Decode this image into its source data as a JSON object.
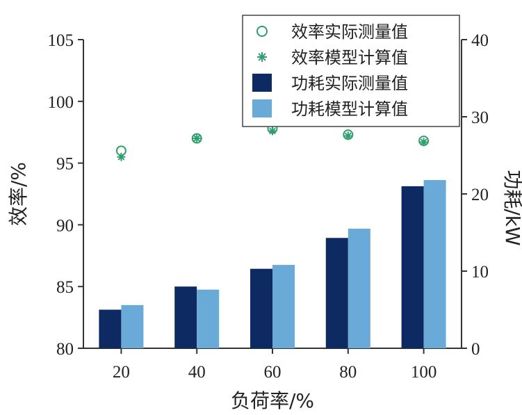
{
  "chart_data": {
    "type": "bar",
    "categories": [
      "20",
      "40",
      "60",
      "80",
      "100"
    ],
    "xlabel": "负荷率/%",
    "ylabel_left": "效率/%",
    "ylabel_right": "功耗/kW",
    "ylim_left": [
      80,
      105
    ],
    "yticks_left": [
      80,
      85,
      90,
      95,
      100,
      105
    ],
    "ylim_right": [
      0,
      40
    ],
    "yticks_right": [
      0,
      10,
      20,
      30,
      40
    ],
    "grid": false,
    "legend_position": "top-right",
    "series": [
      {
        "name": "效率实际测量值",
        "kind": "scatter",
        "marker": "circle",
        "axis": "left",
        "color": "#2e9e6e",
        "values": [
          96.0,
          97.0,
          97.8,
          97.3,
          96.8
        ]
      },
      {
        "name": "效率模型计算值",
        "kind": "scatter",
        "marker": "asterisk",
        "axis": "left",
        "color": "#2e9e6e",
        "values": [
          95.5,
          97.0,
          97.6,
          97.2,
          96.7
        ]
      },
      {
        "name": "功耗实际测量值",
        "kind": "bar",
        "axis": "right",
        "color": "#0d2a63",
        "values": [
          5.0,
          8.0,
          10.3,
          14.3,
          21.0
        ]
      },
      {
        "name": "功耗模型计算值",
        "kind": "bar",
        "axis": "right",
        "color": "#6aaad9",
        "values": [
          5.6,
          7.6,
          10.8,
          15.5,
          21.8
        ]
      }
    ]
  }
}
